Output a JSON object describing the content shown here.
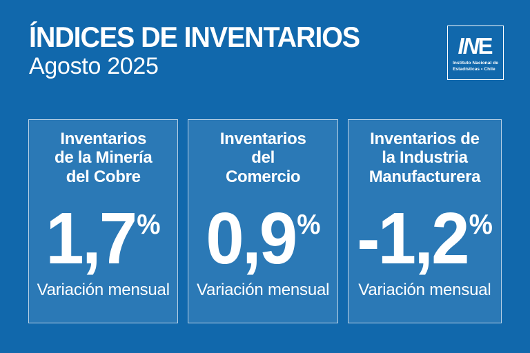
{
  "colors": {
    "background": "#1168AC",
    "card_background": "#2B79B6",
    "card_border": "#BCD3E7",
    "text": "#FFFFFF"
  },
  "header": {
    "title": "ÍNDICES DE INVENTARIOS",
    "subtitle": "Agosto 2025"
  },
  "logo": {
    "acronym_in": "IN",
    "acronym_e": "E",
    "caption_line1": "Instituto Nacional de",
    "caption_line2": "Estadísticas • Chile"
  },
  "cards": [
    {
      "title_lines": [
        "Inventarios",
        "de la Minería",
        "del Cobre"
      ],
      "value": "1,7",
      "unit": "%",
      "caption": "Variación mensual"
    },
    {
      "title_lines": [
        "Inventarios",
        "del",
        "Comercio"
      ],
      "value": "0,9",
      "unit": "%",
      "caption": "Variación mensual"
    },
    {
      "title_lines": [
        "Inventarios de",
        "la Industria",
        "Manufacturera"
      ],
      "value": "-1,2",
      "unit": "%",
      "caption": "Variación mensual"
    }
  ]
}
